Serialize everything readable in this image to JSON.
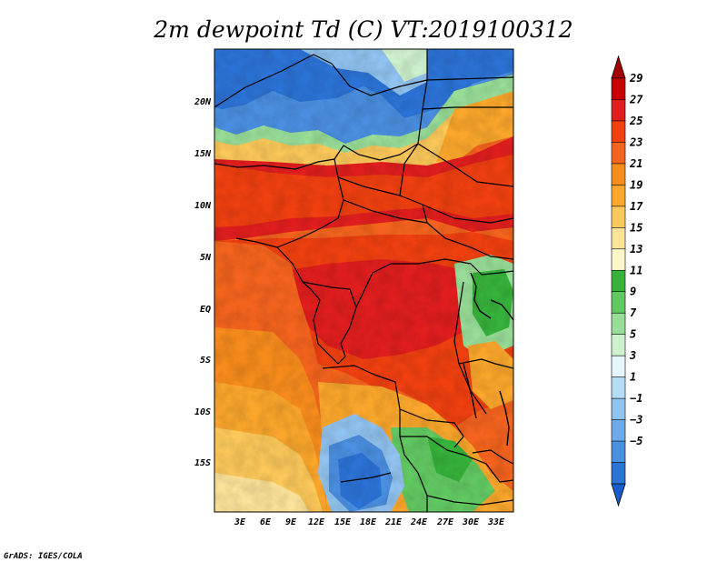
{
  "title": "2m dewpoint Td (C) VT:2019100312",
  "credit": "GrADS: IGES/COLA",
  "map": {
    "lat_labels": [
      "20N",
      "15N",
      "10N",
      "5N",
      "EQ",
      "5S",
      "10S",
      "15S"
    ],
    "lon_labels": [
      "3E",
      "6E",
      "9E",
      "12E",
      "15E",
      "18E",
      "21E",
      "24E",
      "27E",
      "30E",
      "33E"
    ]
  },
  "colorbar": {
    "labels": [
      "29",
      "27",
      "25",
      "23",
      "21",
      "19",
      "17",
      "15",
      "13",
      "11",
      "9",
      "7",
      "5",
      "3",
      "1",
      "−1",
      "−3",
      "−5"
    ],
    "colors": [
      "#a50000",
      "#c80000",
      "#e11e1e",
      "#f04010",
      "#f5641e",
      "#f78c1c",
      "#faa72c",
      "#fbc85a",
      "#fce39a",
      "#fdf6c8",
      "#37b33b",
      "#62c962",
      "#98dd98",
      "#cdf0cd",
      "#e6f6fa",
      "#b4dcf5",
      "#91c3f0",
      "#6eaae8",
      "#4b8fe0",
      "#2c73d6",
      "#1a5cc8"
    ]
  }
}
